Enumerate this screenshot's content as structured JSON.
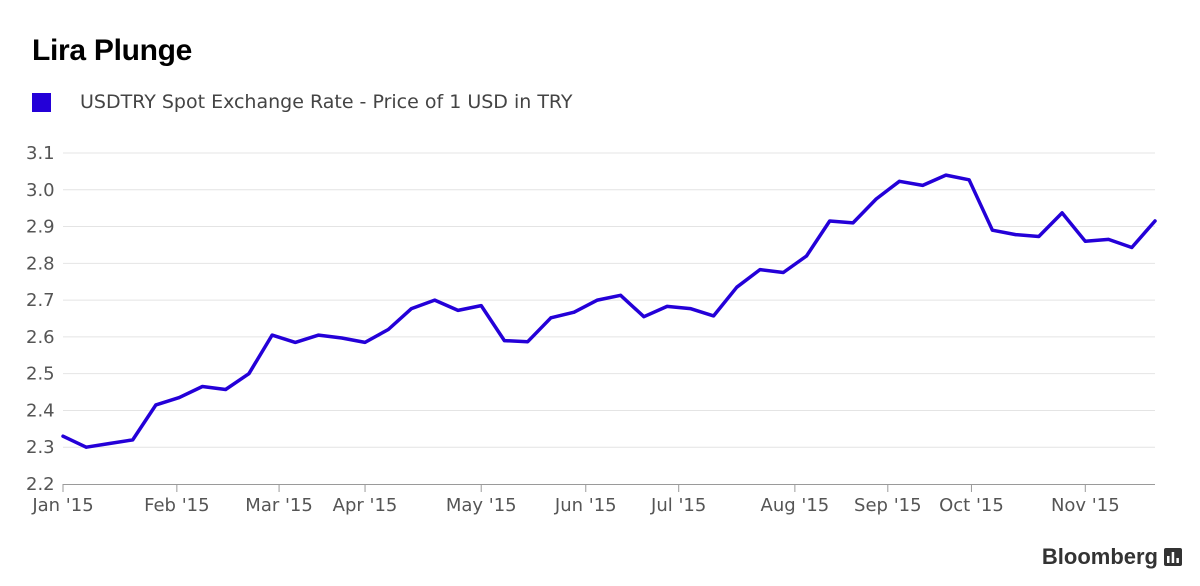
{
  "colors": {
    "series": "#2400d8",
    "grid": "#e4e4e4",
    "axis": "#9a9a9a",
    "text": "#555555"
  },
  "brand": {
    "name": "Bloomberg",
    "icon": "bar-chart-icon"
  },
  "chart_data": {
    "type": "line",
    "title": "Lira Plunge",
    "legend": [
      "USDTRY Spot Exchange Rate - Price of 1 USD in TRY"
    ],
    "legend_position": "top-left",
    "xlabel": "",
    "ylabel": "",
    "ylim": [
      2.2,
      3.1
    ],
    "yticks": [
      "2.2",
      "2.3",
      "2.4",
      "2.5",
      "2.6",
      "2.7",
      "2.8",
      "2.9",
      "3.0",
      "3.1"
    ],
    "xlim": [
      0,
      47
    ],
    "xticks": [
      {
        "label": "Jan '15",
        "at": 0
      },
      {
        "label": "Feb '15",
        "at": 4.9
      },
      {
        "label": "Mar '15",
        "at": 9.3
      },
      {
        "label": "Apr '15",
        "at": 13
      },
      {
        "label": "May '15",
        "at": 18
      },
      {
        "label": "Jun '15",
        "at": 22.5
      },
      {
        "label": "Jul '15",
        "at": 26.5
      },
      {
        "label": "Aug '15",
        "at": 31.5
      },
      {
        "label": "Sep '15",
        "at": 35.5
      },
      {
        "label": "Oct '15",
        "at": 39.1
      },
      {
        "label": "Nov '15",
        "at": 44
      }
    ],
    "grid": true,
    "series": [
      {
        "name": "USDTRY Spot Exchange Rate - Price of 1 USD in TRY",
        "values": [
          2.33,
          2.3,
          2.31,
          2.32,
          2.415,
          2.435,
          2.465,
          2.457,
          2.5,
          2.605,
          2.585,
          2.605,
          2.597,
          2.585,
          2.62,
          2.677,
          2.7,
          2.672,
          2.685,
          2.59,
          2.587,
          2.652,
          2.667,
          2.7,
          2.713,
          2.655,
          2.683,
          2.677,
          2.657,
          2.735,
          2.783,
          2.775,
          2.82,
          2.915,
          2.91,
          2.975,
          3.023,
          3.012,
          3.04,
          3.027,
          2.89,
          2.878,
          2.873,
          2.937,
          2.86,
          2.865,
          2.843,
          2.915
        ]
      }
    ]
  }
}
